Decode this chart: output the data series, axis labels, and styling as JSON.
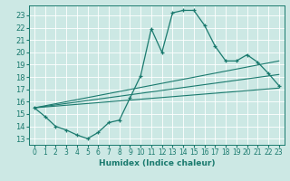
{
  "xlabel": "Humidex (Indice chaleur)",
  "bg_color": "#cce8e4",
  "grid_color": "#aacccc",
  "line_color": "#1a7a6e",
  "xlim": [
    -0.5,
    23.5
  ],
  "ylim": [
    12.5,
    23.8
  ],
  "xticks": [
    0,
    1,
    2,
    3,
    4,
    5,
    6,
    7,
    8,
    9,
    10,
    11,
    12,
    13,
    14,
    15,
    16,
    17,
    18,
    19,
    20,
    21,
    22,
    23
  ],
  "yticks": [
    13,
    14,
    15,
    16,
    17,
    18,
    19,
    20,
    21,
    22,
    23
  ],
  "main_x": [
    0,
    1,
    2,
    3,
    4,
    5,
    6,
    7,
    8,
    9,
    10,
    11,
    12,
    13,
    14,
    15,
    16,
    17,
    18,
    19,
    20,
    21,
    22,
    23
  ],
  "main_y": [
    15.5,
    14.8,
    14.0,
    13.7,
    13.3,
    13.0,
    13.5,
    14.3,
    14.5,
    16.3,
    18.1,
    21.9,
    20.0,
    23.2,
    23.4,
    23.4,
    22.2,
    20.5,
    19.3,
    19.3,
    19.8,
    19.2,
    18.3,
    17.3
  ],
  "line1_x": [
    0,
    23
  ],
  "line1_y": [
    15.5,
    19.3
  ],
  "line2_x": [
    0,
    23
  ],
  "line2_y": [
    15.5,
    18.2
  ],
  "line3_x": [
    0,
    23
  ],
  "line3_y": [
    15.5,
    17.1
  ]
}
